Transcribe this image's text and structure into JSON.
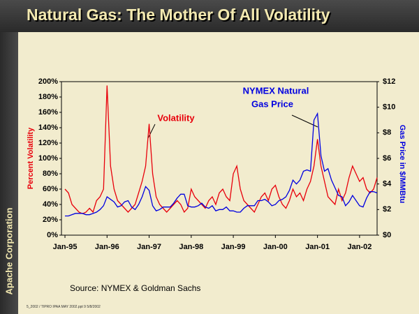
{
  "company": "Apache Corporation",
  "footer": "5_2002 / TIPRO IPAA MAY 2002.ppt   9   5/8/2002",
  "chart_data": {
    "type": "line",
    "title": "Natural Gas: The Mother Of All Volatility",
    "source": "Source: NYMEX & Goldman Sachs",
    "y_label": "Percent Volatility",
    "y2_label": "Gas Price in $/MMBtu",
    "annotations": [
      "Volatility",
      "NYMEX Natural",
      "Gas Price"
    ],
    "x": [
      "1995-01",
      "1995-02",
      "1995-03",
      "1995-04",
      "1995-05",
      "1995-06",
      "1995-07",
      "1995-08",
      "1995-09",
      "1995-10",
      "1995-11",
      "1995-12",
      "1996-01",
      "1996-02",
      "1996-03",
      "1996-04",
      "1996-05",
      "1996-06",
      "1996-07",
      "1996-08",
      "1996-09",
      "1996-10",
      "1996-11",
      "1996-12",
      "1997-01",
      "1997-02",
      "1997-03",
      "1997-04",
      "1997-05",
      "1997-06",
      "1997-07",
      "1997-08",
      "1997-09",
      "1997-10",
      "1997-11",
      "1997-12",
      "1998-01",
      "1998-02",
      "1998-03",
      "1998-04",
      "1998-05",
      "1998-06",
      "1998-07",
      "1998-08",
      "1998-09",
      "1998-10",
      "1998-11",
      "1998-12",
      "1999-01",
      "1999-02",
      "1999-03",
      "1999-04",
      "1999-05",
      "1999-06",
      "1999-07",
      "1999-08",
      "1999-09",
      "1999-10",
      "1999-11",
      "1999-12",
      "2000-01",
      "2000-02",
      "2000-03",
      "2000-04",
      "2000-05",
      "2000-06",
      "2000-07",
      "2000-08",
      "2000-09",
      "2000-10",
      "2000-11",
      "2000-12",
      "2001-01",
      "2001-02",
      "2001-03",
      "2001-04",
      "2001-05",
      "2001-06",
      "2001-07",
      "2001-08",
      "2001-09",
      "2001-10",
      "2001-11",
      "2001-12",
      "2002-01",
      "2002-02",
      "2002-03",
      "2002-04",
      "2002-05",
      "2002-06"
    ],
    "xlim": [
      "1994-12",
      "2002-06"
    ],
    "xticks": [
      {
        "value": "1995-01",
        "label": "Jan-95"
      },
      {
        "value": "1996-01",
        "label": "Jan-96"
      },
      {
        "value": "1997-01",
        "label": "Jan-97"
      },
      {
        "value": "1998-01",
        "label": "Jan-98"
      },
      {
        "value": "1999-01",
        "label": "Jan-99"
      },
      {
        "value": "2000-01",
        "label": "Jan-00"
      },
      {
        "value": "2001-01",
        "label": "Jan-01"
      },
      {
        "value": "2002-01",
        "label": "Jan-02"
      }
    ],
    "ylim": [
      0,
      200
    ],
    "yticks": [
      {
        "value": 0,
        "label": "0%"
      },
      {
        "value": 20,
        "label": "20%"
      },
      {
        "value": 40,
        "label": "40%"
      },
      {
        "value": 60,
        "label": "60%"
      },
      {
        "value": 80,
        "label": "80%"
      },
      {
        "value": 100,
        "label": "100%"
      },
      {
        "value": 120,
        "label": "120%"
      },
      {
        "value": 140,
        "label": "140%"
      },
      {
        "value": 160,
        "label": "160%"
      },
      {
        "value": 180,
        "label": "180%"
      },
      {
        "value": 200,
        "label": "200%"
      }
    ],
    "y2lim": [
      0,
      12
    ],
    "y2ticks": [
      {
        "value": 0,
        "label": "$0"
      },
      {
        "value": 2,
        "label": "$2"
      },
      {
        "value": 4,
        "label": "$4"
      },
      {
        "value": 6,
        "label": "$6"
      },
      {
        "value": 8,
        "label": "$8"
      },
      {
        "value": 10,
        "label": "$10"
      },
      {
        "value": 12,
        "label": "$12"
      }
    ],
    "series": [
      {
        "name": "Volatility",
        "color": "#e8000b",
        "values": [
          60,
          55,
          40,
          35,
          30,
          28,
          30,
          35,
          30,
          45,
          50,
          60,
          195,
          90,
          60,
          45,
          40,
          35,
          30,
          35,
          40,
          55,
          70,
          90,
          145,
          80,
          50,
          40,
          35,
          30,
          35,
          40,
          45,
          40,
          30,
          35,
          60,
          50,
          45,
          40,
          35,
          45,
          50,
          40,
          55,
          60,
          50,
          45,
          80,
          90,
          60,
          45,
          40,
          35,
          30,
          40,
          50,
          55,
          45,
          60,
          65,
          50,
          40,
          35,
          45,
          60,
          50,
          55,
          45,
          60,
          70,
          90,
          125,
          90,
          70,
          50,
          45,
          40,
          60,
          45,
          55,
          75,
          90,
          80,
          70,
          75,
          60,
          55,
          60,
          75
        ]
      },
      {
        "name": "NYMEX Natural Gas Price",
        "color": "#0000e0",
        "axis": "y2",
        "values": [
          1.5,
          1.5,
          1.6,
          1.7,
          1.7,
          1.7,
          1.6,
          1.6,
          1.7,
          1.8,
          2.0,
          2.3,
          3.0,
          2.8,
          2.6,
          2.2,
          2.3,
          2.6,
          2.7,
          2.2,
          2.0,
          2.4,
          3.0,
          3.8,
          3.5,
          2.3,
          1.9,
          2.0,
          2.2,
          2.2,
          2.2,
          2.5,
          2.9,
          3.2,
          3.2,
          2.3,
          2.2,
          2.2,
          2.3,
          2.5,
          2.2,
          2.1,
          2.3,
          1.9,
          2.0,
          2.0,
          2.2,
          1.9,
          1.9,
          1.8,
          1.8,
          2.1,
          2.3,
          2.3,
          2.3,
          2.7,
          2.7,
          2.8,
          2.6,
          2.3,
          2.4,
          2.7,
          2.8,
          3.0,
          3.5,
          4.3,
          4.0,
          4.3,
          5.0,
          5.1,
          5.0,
          9.0,
          9.5,
          6.2,
          5.0,
          5.2,
          4.3,
          3.7,
          3.1,
          3.0,
          2.3,
          2.6,
          3.1,
          2.7,
          2.3,
          2.2,
          2.9,
          3.4,
          3.4,
          3.3
        ]
      }
    ]
  }
}
